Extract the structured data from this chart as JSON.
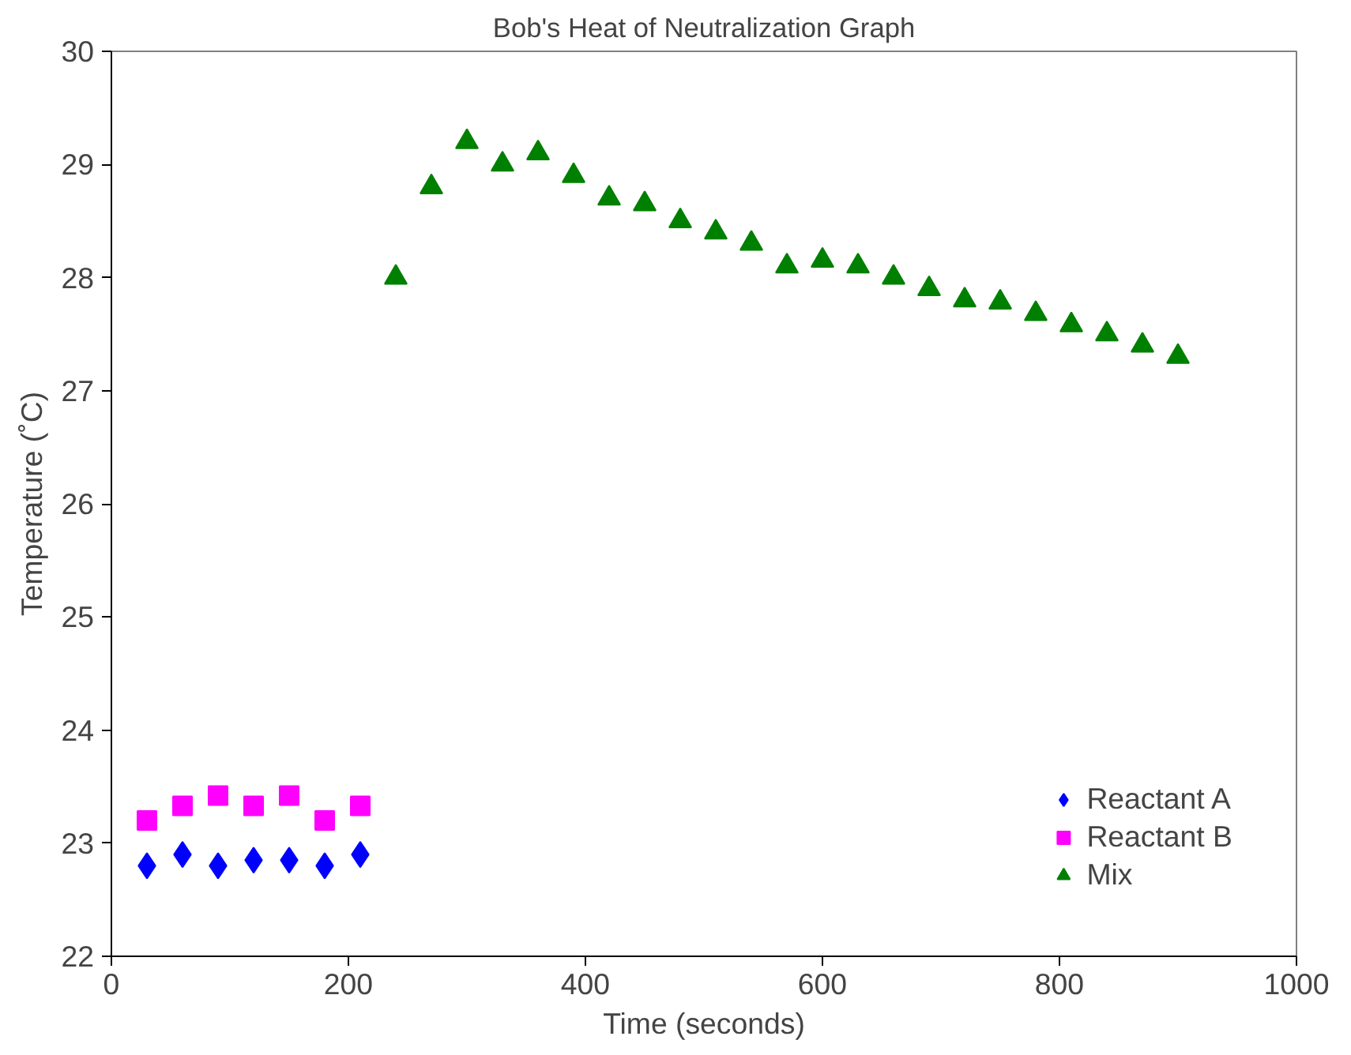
{
  "chart_data": {
    "type": "scatter",
    "title": "Bob's Heat of Neutralization Graph",
    "xlabel": "Time (seconds)",
    "ylabel": "Temperature (˚C)",
    "xlim": [
      0,
      1000
    ],
    "xticks": [
      0,
      200,
      400,
      600,
      800,
      1000
    ],
    "ylim": [
      22,
      30
    ],
    "yticks": [
      22,
      23,
      24,
      25,
      26,
      27,
      28,
      29,
      30
    ],
    "grid": false,
    "legend": "bottom right",
    "series": [
      {
        "name": "Reactant A",
        "color": "#0000ff",
        "marker": "diamond",
        "x": [
          30,
          60,
          90,
          120,
          150,
          180,
          210
        ],
        "values": [
          22.8,
          22.9,
          22.8,
          22.85,
          22.85,
          22.8,
          22.9
        ]
      },
      {
        "name": "Reactant B",
        "color": "#ff00ff",
        "marker": "square",
        "x": [
          30,
          60,
          90,
          120,
          150,
          180,
          210
        ],
        "values": [
          23.2,
          23.33,
          23.42,
          23.33,
          23.42,
          23.2,
          23.33
        ]
      },
      {
        "name": "Mix",
        "color": "#008000",
        "marker": "triangle",
        "x": [
          240,
          270,
          300,
          330,
          360,
          390,
          420,
          450,
          480,
          510,
          540,
          570,
          600,
          630,
          660,
          690,
          720,
          750,
          780,
          810,
          840,
          870,
          900
        ],
        "values": [
          28.0,
          28.8,
          29.2,
          29.0,
          29.1,
          28.9,
          28.7,
          28.65,
          28.5,
          28.4,
          28.3,
          28.1,
          28.15,
          28.1,
          28.0,
          27.9,
          27.8,
          27.78,
          27.68,
          27.58,
          27.5,
          27.4,
          27.3
        ]
      }
    ]
  }
}
